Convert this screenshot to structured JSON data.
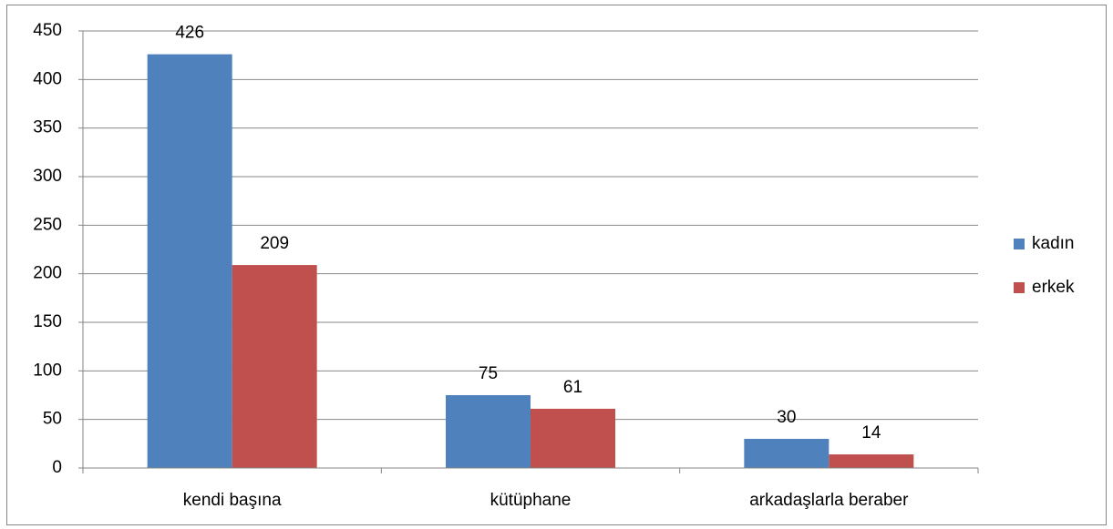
{
  "chart_data": {
    "type": "bar",
    "categories": [
      "kendi başına",
      "kütüphane",
      "arkadaşlarla beraber"
    ],
    "series": [
      {
        "name": "kadın",
        "color": "#4f81bd",
        "values": [
          426,
          75,
          30
        ]
      },
      {
        "name": "erkek",
        "color": "#c0504d",
        "values": [
          209,
          61,
          14
        ]
      }
    ],
    "ylim": [
      0,
      450
    ],
    "yticks": [
      0,
      50,
      100,
      150,
      200,
      250,
      300,
      350,
      400,
      450
    ],
    "grid": true,
    "legend": "right"
  }
}
